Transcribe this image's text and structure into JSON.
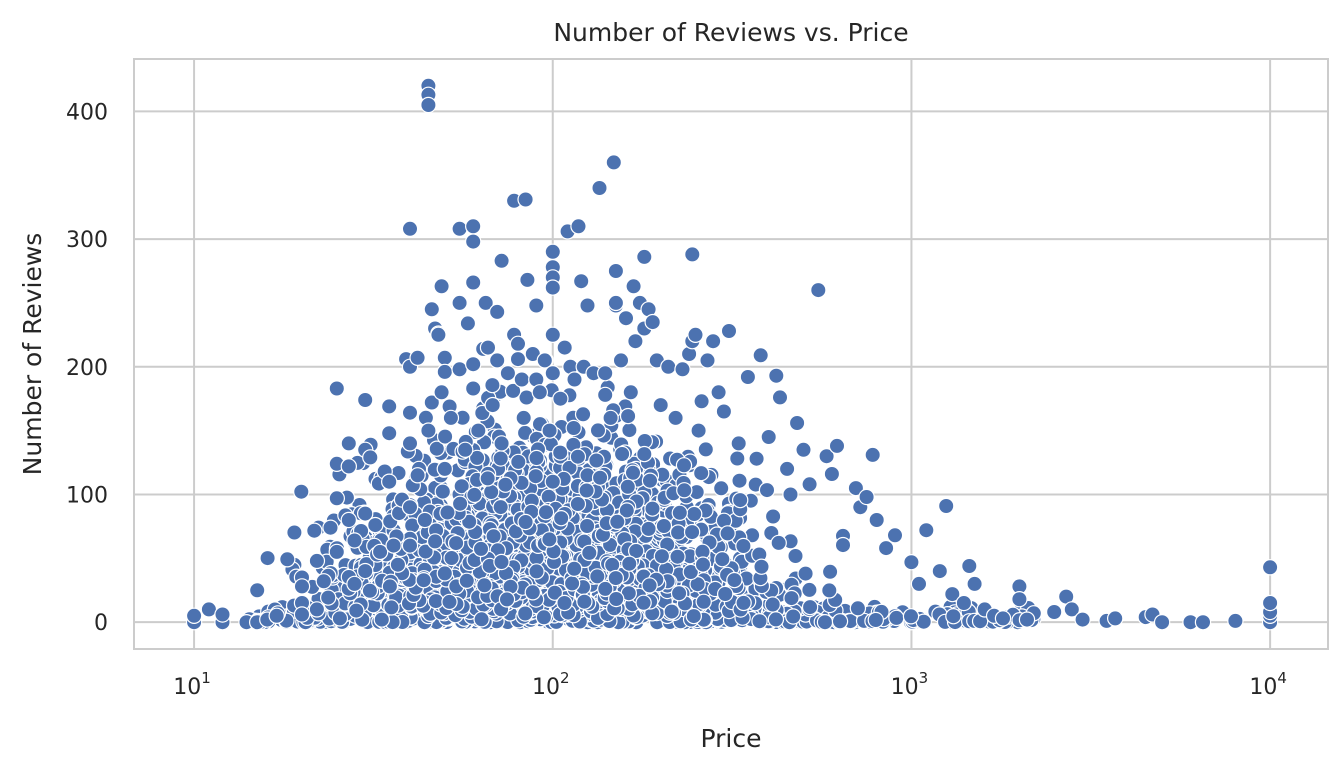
{
  "chart_data": {
    "type": "scatter",
    "title": "Number of Reviews vs. Price",
    "xlabel": "Price",
    "ylabel": "Number of Reviews",
    "x_scale": "log",
    "xlim": [
      6.8,
      14500
    ],
    "ylim": [
      -21,
      441
    ],
    "x_ticks": [
      {
        "value": 10,
        "base": "10",
        "exp": "1"
      },
      {
        "value": 100,
        "base": "10",
        "exp": "2"
      },
      {
        "value": 1000,
        "base": "10",
        "exp": "3"
      },
      {
        "value": 10000,
        "base": "10",
        "exp": "4"
      }
    ],
    "y_ticks": [
      0,
      100,
      200,
      300,
      400
    ],
    "grid": true,
    "marker_color": "#4c72b0",
    "points": [
      [
        10,
        0
      ],
      [
        10,
        5
      ],
      [
        11,
        10
      ],
      [
        12,
        0
      ],
      [
        12,
        6
      ],
      [
        14,
        0
      ],
      [
        15,
        0
      ],
      [
        15,
        25
      ],
      [
        16,
        2
      ],
      [
        17,
        5
      ],
      [
        19,
        13
      ],
      [
        20,
        35
      ],
      [
        20,
        28
      ],
      [
        20,
        15
      ],
      [
        20,
        6
      ],
      [
        22,
        48
      ],
      [
        22,
        10
      ],
      [
        23,
        32
      ],
      [
        24,
        74
      ],
      [
        25,
        183
      ],
      [
        25,
        124
      ],
      [
        25,
        97
      ],
      [
        25,
        55
      ],
      [
        27,
        140
      ],
      [
        27,
        122
      ],
      [
        27,
        80
      ],
      [
        28,
        64
      ],
      [
        28,
        30
      ],
      [
        30,
        174
      ],
      [
        30,
        135
      ],
      [
        30,
        85
      ],
      [
        30,
        40
      ],
      [
        31,
        129
      ],
      [
        32,
        76
      ],
      [
        33,
        55
      ],
      [
        34,
        118
      ],
      [
        35,
        148
      ],
      [
        35,
        169
      ],
      [
        35,
        110
      ],
      [
        36,
        60
      ],
      [
        37,
        45
      ],
      [
        38,
        96
      ],
      [
        39,
        206
      ],
      [
        40,
        308
      ],
      [
        40,
        200
      ],
      [
        40,
        140
      ],
      [
        40,
        164
      ],
      [
        40,
        90
      ],
      [
        40,
        60
      ],
      [
        42,
        115
      ],
      [
        42,
        207
      ],
      [
        44,
        80
      ],
      [
        45,
        420
      ],
      [
        45,
        413
      ],
      [
        45,
        405
      ],
      [
        45,
        150
      ],
      [
        46,
        245
      ],
      [
        46,
        172
      ],
      [
        47,
        230
      ],
      [
        48,
        226
      ],
      [
        48,
        225
      ],
      [
        49,
        263
      ],
      [
        49,
        180
      ],
      [
        50,
        207
      ],
      [
        50,
        196
      ],
      [
        50,
        120
      ],
      [
        52,
        160
      ],
      [
        55,
        308
      ],
      [
        55,
        250
      ],
      [
        55,
        198
      ],
      [
        57,
        135
      ],
      [
        58,
        234
      ],
      [
        60,
        310
      ],
      [
        60,
        298
      ],
      [
        60,
        266
      ],
      [
        60,
        202
      ],
      [
        60,
        183
      ],
      [
        62,
        150
      ],
      [
        64,
        214
      ],
      [
        65,
        250
      ],
      [
        66,
        215
      ],
      [
        68,
        170
      ],
      [
        70,
        243
      ],
      [
        70,
        205
      ],
      [
        72,
        283
      ],
      [
        72,
        140
      ],
      [
        75,
        195
      ],
      [
        78,
        330
      ],
      [
        78,
        225
      ],
      [
        80,
        218
      ],
      [
        80,
        206
      ],
      [
        82,
        190
      ],
      [
        83,
        160
      ],
      [
        84,
        331
      ],
      [
        85,
        268
      ],
      [
        88,
        210
      ],
      [
        90,
        248
      ],
      [
        90,
        190
      ],
      [
        92,
        180
      ],
      [
        95,
        205
      ],
      [
        98,
        150
      ],
      [
        100,
        290
      ],
      [
        100,
        278
      ],
      [
        100,
        270
      ],
      [
        100,
        262
      ],
      [
        100,
        225
      ],
      [
        100,
        195
      ],
      [
        100,
        110
      ],
      [
        105,
        175
      ],
      [
        108,
        215
      ],
      [
        110,
        306
      ],
      [
        112,
        200
      ],
      [
        115,
        190
      ],
      [
        118,
        310
      ],
      [
        120,
        267
      ],
      [
        122,
        200
      ],
      [
        125,
        248
      ],
      [
        130,
        195
      ],
      [
        135,
        340
      ],
      [
        140,
        178
      ],
      [
        140,
        195
      ],
      [
        145,
        160
      ],
      [
        148,
        360
      ],
      [
        150,
        275
      ],
      [
        150,
        248
      ],
      [
        150,
        250
      ],
      [
        155,
        205
      ],
      [
        160,
        238
      ],
      [
        165,
        180
      ],
      [
        168,
        263
      ],
      [
        170,
        220
      ],
      [
        175,
        250
      ],
      [
        180,
        286
      ],
      [
        180,
        230
      ],
      [
        185,
        245
      ],
      [
        190,
        235
      ],
      [
        195,
        205
      ],
      [
        200,
        170
      ],
      [
        210,
        200
      ],
      [
        220,
        160
      ],
      [
        230,
        198
      ],
      [
        240,
        210
      ],
      [
        245,
        288
      ],
      [
        245,
        220
      ],
      [
        250,
        225
      ],
      [
        255,
        150
      ],
      [
        260,
        173
      ],
      [
        270,
        205
      ],
      [
        280,
        220
      ],
      [
        290,
        180
      ],
      [
        300,
        165
      ],
      [
        310,
        228
      ],
      [
        330,
        140
      ],
      [
        350,
        192
      ],
      [
        370,
        128
      ],
      [
        380,
        209
      ],
      [
        400,
        145
      ],
      [
        420,
        193
      ],
      [
        430,
        176
      ],
      [
        450,
        120
      ],
      [
        460,
        100
      ],
      [
        480,
        156
      ],
      [
        500,
        135
      ],
      [
        520,
        108
      ],
      [
        550,
        260
      ],
      [
        580,
        130
      ],
      [
        600,
        116
      ],
      [
        620,
        138
      ],
      [
        700,
        105
      ],
      [
        720,
        90
      ],
      [
        750,
        98
      ],
      [
        780,
        131
      ],
      [
        800,
        80
      ],
      [
        850,
        58
      ],
      [
        900,
        68
      ],
      [
        1000,
        47
      ],
      [
        1050,
        30
      ],
      [
        1100,
        72
      ],
      [
        1200,
        40
      ],
      [
        1250,
        91
      ],
      [
        1300,
        22
      ],
      [
        1400,
        15
      ],
      [
        1450,
        44
      ],
      [
        1500,
        30
      ],
      [
        1600,
        10
      ],
      [
        1700,
        5
      ],
      [
        1800,
        3
      ],
      [
        2000,
        28
      ],
      [
        2000,
        18
      ],
      [
        2100,
        2
      ],
      [
        2500,
        8
      ],
      [
        2700,
        20
      ],
      [
        2800,
        10
      ],
      [
        3000,
        2
      ],
      [
        3500,
        1
      ],
      [
        3700,
        3
      ],
      [
        4500,
        4
      ],
      [
        4700,
        6
      ],
      [
        5000,
        0
      ],
      [
        6000,
        0
      ],
      [
        6500,
        0
      ],
      [
        8000,
        1
      ],
      [
        10000,
        0
      ],
      [
        10000,
        5
      ],
      [
        10000,
        8
      ],
      [
        10000,
        15
      ],
      [
        10000,
        43
      ]
    ],
    "n_dense": 2200,
    "n_floor": 450
  }
}
